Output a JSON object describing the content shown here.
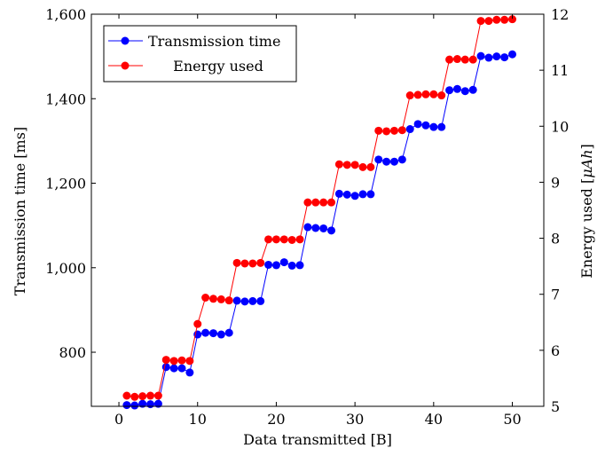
{
  "chart_data": {
    "type": "line",
    "xlabel": "Data transmitted [B]",
    "ylabel_left": "Transmission time [ms]",
    "ylabel_right": "Energy used [",
    "ylabel_right_math": "μAh",
    "ylabel_right_close": "]",
    "xlim": [
      -3.5,
      54
    ],
    "ylim_left": [
      672,
      1600
    ],
    "ylim_right": [
      5,
      12
    ],
    "x_ticks": [
      0,
      10,
      20,
      30,
      40,
      50
    ],
    "x_tick_labels": [
      "0",
      "10",
      "20",
      "30",
      "40",
      "50"
    ],
    "y_left_ticks": [
      800,
      1000,
      1200,
      1400,
      1600
    ],
    "y_left_tick_labels": [
      "800",
      "1,000",
      "1,200",
      "1,400",
      "1,600"
    ],
    "y_right_ticks": [
      5,
      6,
      7,
      8,
      9,
      10,
      11,
      12
    ],
    "y_right_tick_labels": [
      "5",
      "6",
      "7",
      "8",
      "9",
      "10",
      "11",
      "12"
    ],
    "legend_position": "top-left",
    "x": [
      1,
      2,
      3,
      4,
      5,
      6,
      7,
      8,
      9,
      10,
      11,
      12,
      13,
      14,
      15,
      16,
      17,
      18,
      19,
      20,
      21,
      22,
      23,
      24,
      25,
      26,
      27,
      28,
      29,
      30,
      31,
      32,
      33,
      34,
      35,
      36,
      37,
      38,
      39,
      40,
      41,
      42,
      43,
      44,
      45,
      46,
      47,
      48,
      49,
      50
    ],
    "series": [
      {
        "name": "Transmission time",
        "axis": "left",
        "color": "#0000ff",
        "values": [
          675,
          674,
          678,
          677,
          678,
          765,
          762,
          762,
          752,
          842,
          846,
          845,
          842,
          846,
          922,
          920,
          921,
          921,
          1007,
          1006,
          1013,
          1005,
          1006,
          1096,
          1094,
          1093,
          1088,
          1175,
          1173,
          1170,
          1174,
          1174,
          1256,
          1251,
          1251,
          1256,
          1328,
          1340,
          1337,
          1333,
          1333,
          1420,
          1423,
          1418,
          1421,
          1501,
          1497,
          1500,
          1498,
          1505
        ]
      },
      {
        "name": "Energy used",
        "axis": "right",
        "color": "#ff0000",
        "values": [
          5.19,
          5.17,
          5.18,
          5.19,
          5.19,
          5.83,
          5.81,
          5.82,
          5.81,
          6.47,
          6.94,
          6.92,
          6.91,
          6.89,
          7.56,
          7.55,
          7.55,
          7.56,
          7.98,
          7.98,
          7.98,
          7.97,
          7.98,
          8.64,
          8.64,
          8.64,
          8.64,
          9.32,
          9.31,
          9.31,
          9.27,
          9.27,
          9.92,
          9.91,
          9.92,
          9.93,
          10.55,
          10.56,
          10.57,
          10.57,
          10.55,
          11.19,
          11.2,
          11.19,
          11.19,
          11.88,
          11.88,
          11.9,
          11.9,
          11.91
        ]
      }
    ]
  }
}
